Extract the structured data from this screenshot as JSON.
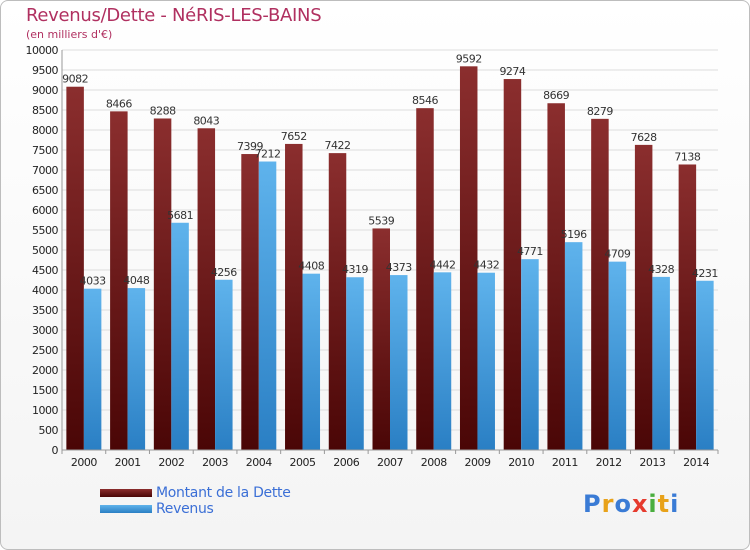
{
  "title": "Revenus/Dette - NéRIS-LES-BAINS",
  "subtitle": "(en milliers d'€)",
  "logo": {
    "text": "Proxiti"
  },
  "legend": {
    "debt_label": "Montant de la Dette",
    "revenue_label": "Revenus"
  },
  "colors": {
    "debt_top": "#8b2e2e",
    "debt_bottom": "#4a0606",
    "revenue_top": "#5fb3ec",
    "revenue_bottom": "#2a7fc4",
    "title": "#b03060"
  },
  "chart_data": {
    "type": "bar",
    "categories": [
      "2000",
      "2001",
      "2002",
      "2003",
      "2004",
      "2005",
      "2006",
      "2007",
      "2008",
      "2009",
      "2010",
      "2011",
      "2012",
      "2013",
      "2014"
    ],
    "series": [
      {
        "name": "Montant de la Dette",
        "values": [
          9082,
          8466,
          8288,
          8043,
          7399,
          7652,
          7422,
          5539,
          8546,
          9592,
          9274,
          8669,
          8279,
          7628,
          7138
        ]
      },
      {
        "name": "Revenus",
        "values": [
          4033,
          4048,
          5681,
          4256,
          7212,
          4408,
          4319,
          4373,
          4442,
          4432,
          4771,
          5196,
          4709,
          4328,
          4231
        ]
      }
    ],
    "ylim": [
      0,
      10000
    ],
    "ytick_step": 500,
    "grid": true,
    "legend_position": "bottom-left"
  }
}
